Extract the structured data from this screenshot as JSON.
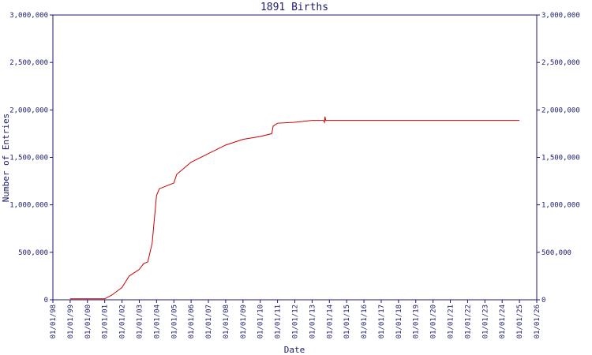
{
  "chart_data": {
    "type": "line",
    "title": "1891 Births",
    "x_label": "Date",
    "y_label": "Number of Entries",
    "xlim": [
      "1998-01-01",
      "2026-01-01"
    ],
    "xticks": [
      {
        "value": "1998-01-01",
        "label": "01/01/98"
      },
      {
        "value": "1999-01-01",
        "label": "01/01/99"
      },
      {
        "value": "2000-01-01",
        "label": "01/01/00"
      },
      {
        "value": "2001-01-01",
        "label": "01/01/01"
      },
      {
        "value": "2002-01-01",
        "label": "01/01/02"
      },
      {
        "value": "2003-01-01",
        "label": "01/01/03"
      },
      {
        "value": "2004-01-01",
        "label": "01/01/04"
      },
      {
        "value": "2005-01-01",
        "label": "01/01/05"
      },
      {
        "value": "2006-01-01",
        "label": "01/01/06"
      },
      {
        "value": "2007-01-01",
        "label": "01/01/07"
      },
      {
        "value": "2008-01-01",
        "label": "01/01/08"
      },
      {
        "value": "2009-01-01",
        "label": "01/01/09"
      },
      {
        "value": "2010-01-01",
        "label": "01/01/10"
      },
      {
        "value": "2011-01-01",
        "label": "01/01/11"
      },
      {
        "value": "2012-01-01",
        "label": "01/01/12"
      },
      {
        "value": "2013-01-01",
        "label": "01/01/13"
      },
      {
        "value": "2014-01-01",
        "label": "01/01/14"
      },
      {
        "value": "2015-01-01",
        "label": "01/01/15"
      },
      {
        "value": "2016-01-01",
        "label": "01/01/16"
      },
      {
        "value": "2017-01-01",
        "label": "01/01/17"
      },
      {
        "value": "2018-01-01",
        "label": "01/01/18"
      },
      {
        "value": "2019-01-01",
        "label": "01/01/19"
      },
      {
        "value": "2020-01-01",
        "label": "01/01/20"
      },
      {
        "value": "2021-01-01",
        "label": "01/01/21"
      },
      {
        "value": "2022-01-01",
        "label": "01/01/22"
      },
      {
        "value": "2023-01-01",
        "label": "01/01/23"
      },
      {
        "value": "2024-01-01",
        "label": "01/01/24"
      },
      {
        "value": "2025-01-01",
        "label": "01/01/25"
      },
      {
        "value": "2026-01-01",
        "label": "01/01/26"
      }
    ],
    "ylim": [
      0,
      3000000
    ],
    "yticks": [
      0,
      {
        "value": 500000,
        "label": "500,000"
      },
      {
        "value": 1000000,
        "label": "1,000,000"
      },
      {
        "value": 1500000,
        "label": "1,500,000"
      },
      {
        "value": 2000000,
        "label": "2,000,000"
      },
      {
        "value": 2500000,
        "label": "2,500,000"
      },
      {
        "value": 3000000,
        "label": "3,000,000"
      }
    ],
    "x": [
      "1999-01-01",
      "2001-01-01",
      "2001-06-01",
      "2002-01-01",
      "2002-06-01",
      "2003-01-01",
      "2003-04-01",
      "2003-07-01",
      "2003-10-01",
      "2004-01-01",
      "2004-03-01",
      "2005-01-01",
      "2005-03-01",
      "2006-01-01",
      "2007-01-01",
      "2008-01-01",
      "2009-01-01",
      "2010-01-01",
      "2010-09-01",
      "2010-10-01",
      "2011-01-01",
      "2012-01-01",
      "2013-01-01",
      "2013-09-01",
      "2013-09-20",
      "2013-10-01",
      "2013-10-15",
      "2025-01-01"
    ],
    "series": [
      {
        "color": "#cc0000",
        "values": [
          10000,
          10000,
          50000,
          130000,
          250000,
          320000,
          380000,
          400000,
          600000,
          1100000,
          1170000,
          1230000,
          1320000,
          1450000,
          1540000,
          1630000,
          1690000,
          1720000,
          1750000,
          1830000,
          1860000,
          1870000,
          1890000,
          1890000,
          1870000,
          1930000,
          1890000,
          1890000
        ]
      }
    ]
  }
}
